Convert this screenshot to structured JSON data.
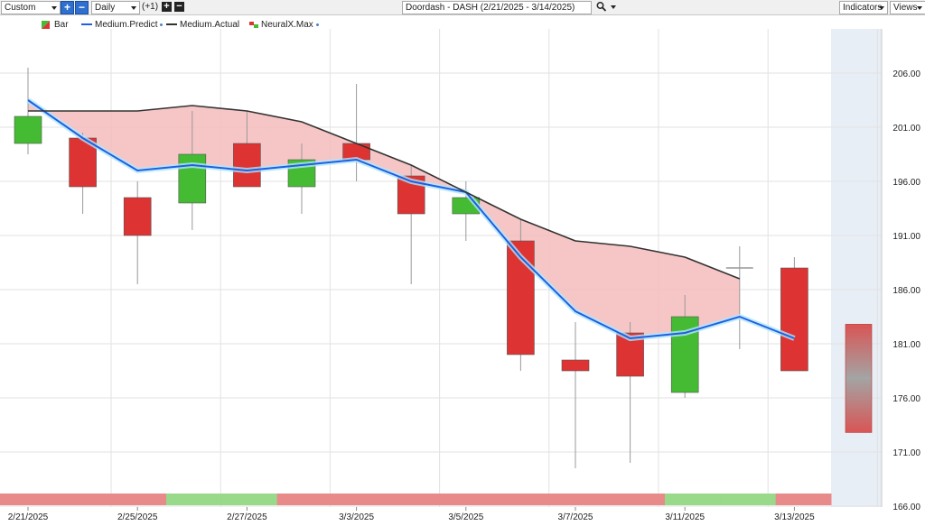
{
  "toolbar": {
    "range_select": "Custom",
    "period_select": "Daily",
    "offset_label": "(+1)",
    "title": "Doordash - DASH (2/21/2025 - 3/14/2025)",
    "indicators_label": "Indicators",
    "views_label": "Views",
    "plus_symbol": "+",
    "minus_symbol": "−"
  },
  "legend": {
    "items": [
      {
        "label": "Bar",
        "swatch": "bar-swatch"
      },
      {
        "label": "Medium.Predict",
        "color": "#1f5fe0"
      },
      {
        "label": "Medium.Actual",
        "color": "#333333"
      },
      {
        "label": "NeuralX.Max",
        "swatch": "neuralx-swatch"
      }
    ]
  },
  "colors": {
    "up": "#44bb33",
    "down": "#dd3333",
    "predict": "#1f5fe0",
    "actual": "#333333",
    "fill": "#f4bcbc",
    "strip_red": "#e88a8a",
    "strip_green": "#99d98a",
    "forecast_bg": "#e8eef6"
  },
  "chart_data": {
    "type": "candlestick",
    "y_axis": {
      "min": 166,
      "max": 206,
      "ticks": [
        "206.00",
        "201.00",
        "196.00",
        "191.00",
        "186.00",
        "181.00",
        "176.00",
        "171.00",
        "166.00"
      ]
    },
    "x_tick_labels": [
      "2/21/2025",
      "2/25/2025",
      "2/27/2025",
      "3/3/2025",
      "3/5/2025",
      "3/7/2025",
      "3/11/2025",
      "3/13/2025"
    ],
    "candles": [
      {
        "open": 199.5,
        "close": 202.0,
        "high": 206.5,
        "low": 198.5
      },
      {
        "open": 200.0,
        "close": 195.5,
        "high": 200.5,
        "low": 193.0
      },
      {
        "open": 194.5,
        "close": 191.0,
        "high": 196.0,
        "low": 186.5
      },
      {
        "open": 194.0,
        "close": 198.5,
        "high": 202.5,
        "low": 191.5
      },
      {
        "open": 199.5,
        "close": 195.5,
        "high": 202.5,
        "low": 195.5
      },
      {
        "open": 195.5,
        "close": 198.0,
        "high": 199.5,
        "low": 193.0
      },
      {
        "open": 199.5,
        "close": 198.0,
        "high": 205.0,
        "low": 196.0
      },
      {
        "open": 196.5,
        "close": 193.0,
        "high": 197.5,
        "low": 186.5
      },
      {
        "open": 193.0,
        "close": 194.5,
        "high": 196.0,
        "low": 190.5
      },
      {
        "open": 190.5,
        "close": 180.0,
        "high": 192.5,
        "low": 178.5
      },
      {
        "open": 179.5,
        "close": 178.5,
        "high": 183.0,
        "low": 169.5
      },
      {
        "open": 182.0,
        "close": 178.0,
        "high": 183.0,
        "low": 170.0
      },
      {
        "open": 176.5,
        "close": 183.5,
        "high": 185.5,
        "low": 176.0
      },
      {
        "open": 188.0,
        "close": 188.0,
        "high": 190.0,
        "low": 180.5
      },
      {
        "open": 188.0,
        "close": 178.5,
        "high": 189.0,
        "low": 178.5
      }
    ],
    "medium_predict": [
      203.5,
      200.0,
      197.0,
      197.5,
      197.0,
      197.5,
      198.0,
      196.0,
      195.0,
      189.0,
      184.0,
      181.5,
      182.0,
      183.5,
      181.5
    ],
    "medium_actual": [
      202.5,
      202.5,
      202.5,
      203.0,
      202.5,
      201.5,
      199.5,
      197.5,
      195.0,
      192.5,
      190.5,
      190.0,
      189.0,
      187.0
    ],
    "forecast_bar": {
      "high": 182.8,
      "low": 172.8
    },
    "signal_strip": [
      "red",
      "red",
      "red",
      "green",
      "green",
      "red",
      "red",
      "red",
      "red",
      "red",
      "red",
      "red",
      "green",
      "green",
      "red"
    ]
  }
}
